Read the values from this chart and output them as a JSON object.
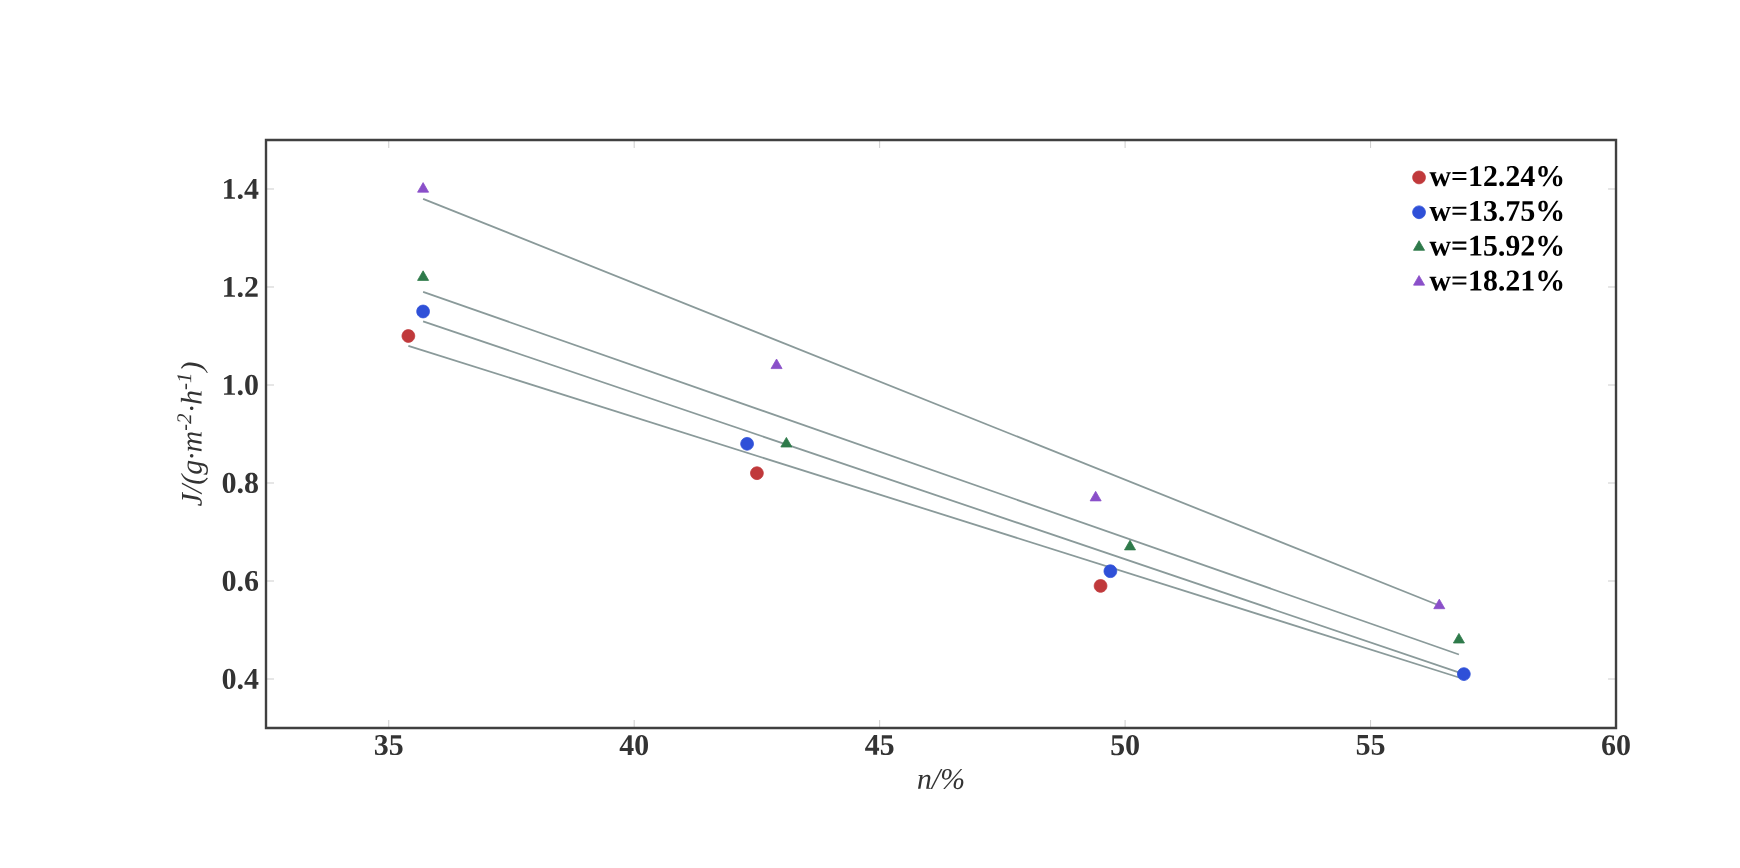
{
  "chart_data": {
    "type": "scatter",
    "xlabel": "n/%",
    "ylabel": "J/(g·m$^{-2}$·h$^{-1}$)",
    "xlim": [
      32.5,
      60
    ],
    "xticks": [
      35,
      40,
      45,
      50,
      55,
      60
    ],
    "ylim": [
      0.3,
      1.5
    ],
    "yticks": [
      0.4,
      0.6,
      0.8,
      {
        "value": 1.0,
        "label": "1.0"
      },
      1.2,
      1.4
    ],
    "legend": "top right",
    "grid": false,
    "series": [
      {
        "name": "w=12.24%",
        "color": "#c0393b",
        "marker": "circle",
        "x": [
          35.4,
          42.5,
          49.5
        ],
        "values": [
          1.1,
          0.82,
          0.59
        ]
      },
      {
        "name": "w=13.75%",
        "color": "#2f50d8",
        "marker": "circle",
        "x": [
          35.7,
          42.3,
          49.7,
          56.9
        ],
        "values": [
          1.15,
          0.88,
          0.62,
          0.41
        ]
      },
      {
        "name": "w=15.92%",
        "color": "#2e7a4a",
        "marker": "triangle",
        "x": [
          35.7,
          43.1,
          50.1,
          56.8
        ],
        "values": [
          1.22,
          0.88,
          0.67,
          0.48
        ]
      },
      {
        "name": "w=18.21%",
        "color": "#8a4fc9",
        "marker": "triangle",
        "x": [
          35.7,
          42.9,
          49.4,
          56.4
        ],
        "values": [
          1.4,
          1.04,
          0.77,
          0.55
        ]
      },
      {
        "type": "line",
        "color": "#8a9a9a",
        "x": [
          35.4,
          56.9
        ],
        "values": [
          1.08,
          0.4
        ]
      },
      {
        "type": "line",
        "color": "#8a9a9a",
        "x": [
          35.7,
          56.9
        ],
        "values": [
          1.13,
          0.41
        ]
      },
      {
        "type": "line",
        "color": "#8a9a9a",
        "x": [
          35.7,
          56.8
        ],
        "values": [
          1.19,
          0.45
        ]
      },
      {
        "type": "line",
        "color": "#8a9a9a",
        "x": [
          35.7,
          56.4
        ],
        "values": [
          1.38,
          0.55
        ]
      }
    ]
  }
}
